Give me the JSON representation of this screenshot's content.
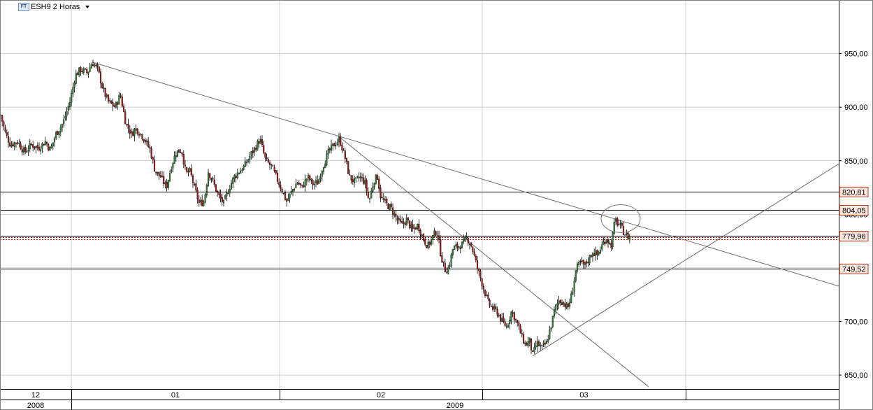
{
  "header": {
    "symbol_badge": "FT",
    "title": "ESH9 2 Horas",
    "menu_icon": "chevron-down-icon"
  },
  "colors": {
    "up_candle": "#2e7d32",
    "down_candle": "#a31414",
    "wick": "#000000",
    "price_line_flags": "#c0361c",
    "current_price_dotted": "#c00000",
    "grid": "#cfcfcf"
  },
  "chart_data": {
    "type": "candlestick",
    "title": "ESH9 2 Horas",
    "y_axis": {
      "position": "right",
      "ylim": [
        637,
        1000
      ],
      "ticks": [
        "950,00",
        "900,00",
        "850,00",
        "800,00",
        "750,00",
        "700,00",
        "650,00"
      ]
    },
    "x_axis": {
      "month_labels": [
        "12",
        "01",
        "02",
        "03"
      ],
      "year_labels": [
        "2008",
        "2009"
      ]
    },
    "horizontal_levels": [
      {
        "label": "820,81",
        "value": 820.81
      },
      {
        "label": "804,05",
        "value": 804.05
      },
      {
        "label": "779,96",
        "value": 779.96
      },
      {
        "label": "749,52",
        "value": 749.52
      }
    ],
    "current_price_band": [
      776.5,
      779.0
    ],
    "price_path": [
      [
        0,
        895
      ],
      [
        8,
        875
      ],
      [
        15,
        865
      ],
      [
        25,
        868
      ],
      [
        35,
        858
      ],
      [
        45,
        865
      ],
      [
        55,
        862
      ],
      [
        65,
        868
      ],
      [
        72,
        860
      ],
      [
        80,
        875
      ],
      [
        90,
        885
      ],
      [
        100,
        905
      ],
      [
        108,
        930
      ],
      [
        115,
        935
      ],
      [
        125,
        932
      ],
      [
        132,
        942
      ],
      [
        140,
        935
      ],
      [
        148,
        915
      ],
      [
        155,
        905
      ],
      [
        165,
        900
      ],
      [
        172,
        912
      ],
      [
        180,
        885
      ],
      [
        188,
        875
      ],
      [
        195,
        880
      ],
      [
        205,
        872
      ],
      [
        215,
        860
      ],
      [
        222,
        840
      ],
      [
        230,
        835
      ],
      [
        238,
        825
      ],
      [
        245,
        845
      ],
      [
        252,
        858
      ],
      [
        260,
        860
      ],
      [
        266,
        838
      ],
      [
        272,
        840
      ],
      [
        278,
        825
      ],
      [
        285,
        810
      ],
      [
        292,
        812
      ],
      [
        298,
        840
      ],
      [
        305,
        830
      ],
      [
        312,
        818
      ],
      [
        320,
        810
      ],
      [
        328,
        825
      ],
      [
        335,
        835
      ],
      [
        342,
        840
      ],
      [
        350,
        845
      ],
      [
        358,
        855
      ],
      [
        365,
        862
      ],
      [
        372,
        870
      ],
      [
        380,
        850
      ],
      [
        388,
        845
      ],
      [
        395,
        835
      ],
      [
        402,
        825
      ],
      [
        410,
        812
      ],
      [
        418,
        822
      ],
      [
        425,
        830
      ],
      [
        432,
        825
      ],
      [
        440,
        835
      ],
      [
        448,
        828
      ],
      [
        455,
        830
      ],
      [
        462,
        845
      ],
      [
        470,
        858
      ],
      [
        478,
        865
      ],
      [
        486,
        870
      ],
      [
        494,
        852
      ],
      [
        500,
        835
      ],
      [
        508,
        830
      ],
      [
        515,
        835
      ],
      [
        522,
        830
      ],
      [
        528,
        812
      ],
      [
        535,
        832
      ],
      [
        540,
        835
      ],
      [
        545,
        815
      ],
      [
        552,
        810
      ],
      [
        560,
        805
      ],
      [
        568,
        795
      ],
      [
        575,
        790
      ],
      [
        582,
        795
      ],
      [
        590,
        785
      ],
      [
        598,
        790
      ],
      [
        605,
        778
      ],
      [
        612,
        770
      ],
      [
        620,
        780
      ],
      [
        625,
        785
      ],
      [
        630,
        765
      ],
      [
        636,
        748
      ],
      [
        642,
        750
      ],
      [
        648,
        768
      ],
      [
        655,
        770
      ],
      [
        662,
        772
      ],
      [
        668,
        778
      ],
      [
        675,
        770
      ],
      [
        682,
        752
      ],
      [
        690,
        735
      ],
      [
        698,
        718
      ],
      [
        705,
        712
      ],
      [
        712,
        708
      ],
      [
        718,
        700
      ],
      [
        725,
        695
      ],
      [
        732,
        710
      ],
      [
        740,
        698
      ],
      [
        747,
        685
      ],
      [
        752,
        678
      ],
      [
        758,
        682
      ],
      [
        762,
        668
      ],
      [
        768,
        680
      ],
      [
        775,
        675
      ],
      [
        782,
        680
      ],
      [
        788,
        695
      ],
      [
        794,
        712
      ],
      [
        800,
        720
      ],
      [
        806,
        718
      ],
      [
        812,
        712
      ],
      [
        818,
        725
      ],
      [
        824,
        748
      ],
      [
        830,
        755
      ],
      [
        836,
        752
      ],
      [
        842,
        758
      ],
      [
        848,
        765
      ],
      [
        855,
        762
      ],
      [
        862,
        772
      ],
      [
        868,
        778
      ],
      [
        874,
        770
      ],
      [
        880,
        795
      ],
      [
        886,
        790
      ],
      [
        892,
        784
      ],
      [
        898,
        779
      ],
      [
        903,
        778
      ]
    ],
    "trendlines": [
      {
        "from": [
          132,
          942
        ],
        "to": [
          1200,
          733
        ]
      },
      {
        "from": [
          484,
          873
        ],
        "to": [
          928,
          639
        ]
      },
      {
        "from": [
          762,
          668
        ],
        "to": [
          1200,
          847
        ]
      }
    ],
    "annotation_circle": {
      "center": [
        886,
        796
      ],
      "radius_units": 13
    }
  }
}
